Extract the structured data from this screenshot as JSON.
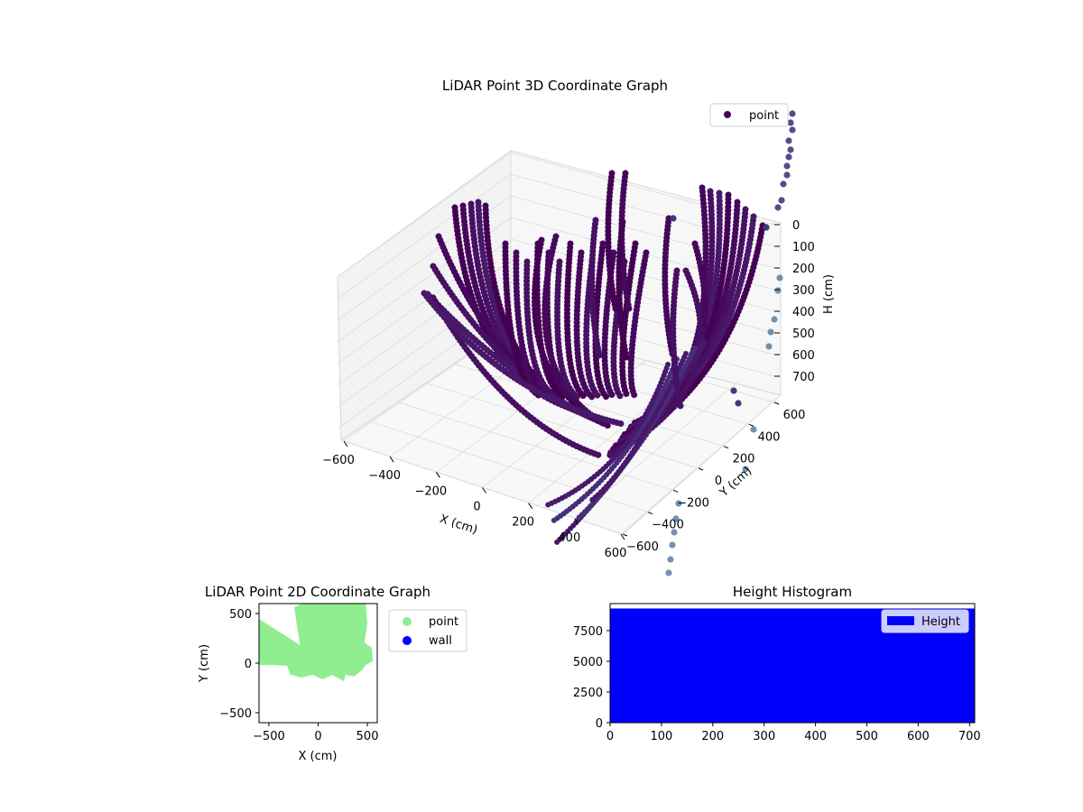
{
  "chart_data": [
    {
      "type": "scatter3d",
      "title": "LiDAR Point 3D Coordinate Graph",
      "xlabel": "X (cm)",
      "ylabel": "Y (cm)",
      "zlabel": "H (cm)",
      "xlim": [
        -600,
        600
      ],
      "ylim": [
        -600,
        600
      ],
      "zlim": [
        0,
        700
      ],
      "z_inverted": true,
      "x_ticks": [
        -600,
        -400,
        -200,
        0,
        200,
        400,
        600
      ],
      "y_ticks": [
        -600,
        -400,
        -200,
        0,
        200,
        400,
        600
      ],
      "z_ticks": [
        0,
        100,
        200,
        300,
        400,
        500,
        600,
        700
      ],
      "colormap": "viridis",
      "legend": [
        "point"
      ],
      "legend_position": "upper right",
      "grid": true
    },
    {
      "type": "scatter",
      "title": "LiDAR Point 2D Coordinate Graph",
      "xlabel": "X (cm)",
      "ylabel": "Y (cm)",
      "xlim": [
        -600,
        600
      ],
      "ylim": [
        -600,
        600
      ],
      "x_ticks": [
        -500,
        0,
        500
      ],
      "y_ticks": [
        -500,
        0,
        500
      ],
      "series": [
        {
          "name": "point",
          "color": "#90ee90"
        },
        {
          "name": "wall",
          "color": "#0000ff"
        }
      ],
      "legend_position": "outside right"
    },
    {
      "type": "bar",
      "title": "Height Histogram",
      "xlim": [
        0,
        710
      ],
      "ylim": [
        0,
        9700
      ],
      "x_ticks": [
        0,
        100,
        200,
        300,
        400,
        500,
        600,
        700
      ],
      "y_ticks": [
        0,
        2500,
        5000,
        7500
      ],
      "series": [
        {
          "name": "Height",
          "color": "#0000ff",
          "bin_range": [
            0,
            710
          ],
          "bin_count": 9300
        }
      ],
      "legend_position": "upper right"
    }
  ]
}
